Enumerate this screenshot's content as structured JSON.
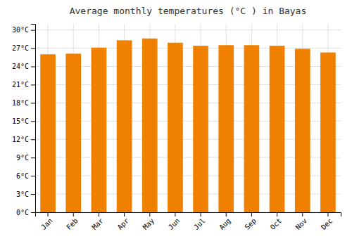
{
  "chart_data": {
    "type": "bar",
    "title": "Average monthly temperatures (°C ) in Bayas",
    "categories": [
      "Jan",
      "Feb",
      "Mar",
      "Apr",
      "May",
      "Jun",
      "Jul",
      "Aug",
      "Sep",
      "Oct",
      "Nov",
      "Dec"
    ],
    "values": [
      26.0,
      26.1,
      27.1,
      28.3,
      28.6,
      27.9,
      27.4,
      27.5,
      27.5,
      27.4,
      26.9,
      26.3
    ],
    "color": "#F08000",
    "ylim": [
      0,
      31
    ],
    "yticks": [
      {
        "value": 0,
        "label": "0°C"
      },
      {
        "value": 3,
        "label": "3°C"
      },
      {
        "value": 6,
        "label": "6°C"
      },
      {
        "value": 9,
        "label": "9°C"
      },
      {
        "value": 12,
        "label": "12°C"
      },
      {
        "value": 15,
        "label": "15°C"
      },
      {
        "value": 18,
        "label": "18°C"
      },
      {
        "value": 21,
        "label": "21°C"
      },
      {
        "value": 24,
        "label": "24°C"
      },
      {
        "value": 27,
        "label": "27°C"
      },
      {
        "value": 30,
        "label": "30°C"
      }
    ],
    "grid": true
  }
}
